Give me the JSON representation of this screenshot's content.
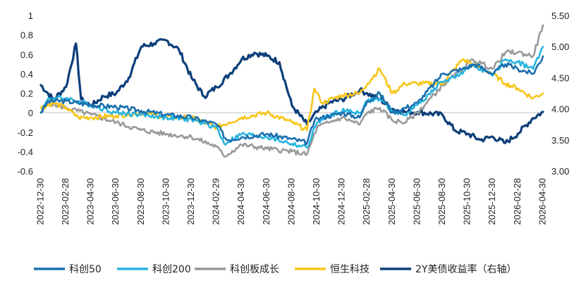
{
  "chart_data": {
    "type": "line",
    "title": "",
    "xlabel": "",
    "ylabel": "",
    "y2label": "",
    "ylim": [
      -0.6,
      1.0
    ],
    "y2lim": [
      3.0,
      5.5
    ],
    "yticks": [
      "1",
      "0.8",
      "0.6",
      "0.4",
      "0.2",
      "0",
      "-0.2",
      "-0.4",
      "-0.6"
    ],
    "y2ticks": [
      "5.50",
      "5.00",
      "4.50",
      "4.00",
      "3.50",
      "3.00"
    ],
    "xticks": [
      "2022-12-30",
      "2023-02-28",
      "2023-04-30",
      "2023-06-30",
      "2023-08-30",
      "2023-10-30",
      "2023-12-30",
      "2024-02-29",
      "2024-04-30",
      "2024-06-30",
      "2024-08-30",
      "2024-10-30",
      "2024-12-30",
      "2025-02-28",
      "2025-04-30",
      "2025-06-30",
      "2025-08-30",
      "2025-10-30",
      "2025-12-30",
      "2026-02-28",
      "2026-04-30"
    ],
    "legend_position": "bottom",
    "grid": false,
    "series": [
      {
        "name": "科创50",
        "color": "#1a6fad",
        "axis": "left",
        "points": [
          [
            0,
            0.0
          ],
          [
            0.3,
            0.12
          ],
          [
            1,
            0.12
          ],
          [
            2,
            0.08
          ],
          [
            3,
            0.06
          ],
          [
            4,
            0.02
          ],
          [
            5,
            -0.02
          ],
          [
            6,
            -0.05
          ],
          [
            7,
            -0.12
          ],
          [
            7.4,
            -0.28
          ],
          [
            8,
            -0.25
          ],
          [
            9,
            -0.22
          ],
          [
            10,
            -0.27
          ],
          [
            10.6,
            -0.31
          ],
          [
            10.9,
            -0.08
          ],
          [
            11.2,
            -0.05
          ],
          [
            12,
            0.0
          ],
          [
            12.7,
            -0.05
          ],
          [
            13,
            0.12
          ],
          [
            13.5,
            0.2
          ],
          [
            14,
            0.0
          ],
          [
            14.5,
            0.05
          ],
          [
            15,
            0.1
          ],
          [
            16,
            0.4
          ],
          [
            16.8,
            0.45
          ],
          [
            17.3,
            0.5
          ],
          [
            18,
            0.4
          ],
          [
            18.5,
            0.5
          ],
          [
            19,
            0.45
          ],
          [
            19.6,
            0.4
          ],
          [
            20,
            0.58
          ]
        ]
      },
      {
        "name": "科创200",
        "color": "#28b4e0",
        "axis": "left",
        "points": [
          [
            0,
            0.0
          ],
          [
            0.3,
            0.15
          ],
          [
            1,
            0.15
          ],
          [
            2,
            0.08
          ],
          [
            3,
            0.0
          ],
          [
            4,
            -0.02
          ],
          [
            5,
            -0.05
          ],
          [
            6,
            -0.07
          ],
          [
            7,
            -0.15
          ],
          [
            7.3,
            -0.32
          ],
          [
            8,
            -0.22
          ],
          [
            9,
            -0.25
          ],
          [
            10,
            -0.32
          ],
          [
            10.6,
            -0.36
          ],
          [
            11,
            -0.1
          ],
          [
            11.5,
            -0.03
          ],
          [
            12,
            0.02
          ],
          [
            12.7,
            0.0
          ],
          [
            13,
            0.12
          ],
          [
            13.5,
            0.14
          ],
          [
            14,
            0.02
          ],
          [
            14.5,
            -0.02
          ],
          [
            15,
            0.08
          ],
          [
            16,
            0.32
          ],
          [
            16.8,
            0.4
          ],
          [
            17.2,
            0.5
          ],
          [
            18,
            0.38
          ],
          [
            18.5,
            0.55
          ],
          [
            19,
            0.52
          ],
          [
            19.6,
            0.45
          ],
          [
            20,
            0.68
          ]
        ]
      },
      {
        "name": "科创板成长",
        "color": "#999999",
        "axis": "left",
        "points": [
          [
            0,
            0.0
          ],
          [
            0.3,
            0.1
          ],
          [
            1,
            0.05
          ],
          [
            2,
            -0.02
          ],
          [
            3,
            -0.1
          ],
          [
            4,
            -0.18
          ],
          [
            5,
            -0.22
          ],
          [
            6,
            -0.25
          ],
          [
            7,
            -0.35
          ],
          [
            7.3,
            -0.45
          ],
          [
            8,
            -0.33
          ],
          [
            9,
            -0.37
          ],
          [
            10,
            -0.4
          ],
          [
            10.6,
            -0.43
          ],
          [
            11,
            -0.15
          ],
          [
            11.5,
            -0.1
          ],
          [
            12,
            -0.05
          ],
          [
            12.7,
            -0.12
          ],
          [
            13,
            0.0
          ],
          [
            13.5,
            0.05
          ],
          [
            14,
            -0.08
          ],
          [
            14.5,
            -0.1
          ],
          [
            15,
            0.0
          ],
          [
            16,
            0.28
          ],
          [
            16.8,
            0.45
          ],
          [
            17.2,
            0.55
          ],
          [
            18,
            0.45
          ],
          [
            18.5,
            0.62
          ],
          [
            19,
            0.62
          ],
          [
            19.6,
            0.58
          ],
          [
            20,
            0.9
          ]
        ]
      },
      {
        "name": "恒生科技",
        "color": "#f7c519",
        "axis": "left",
        "points": [
          [
            0,
            0.05
          ],
          [
            0.5,
            0.1
          ],
          [
            1,
            0.05
          ],
          [
            1.5,
            -0.05
          ],
          [
            2,
            -0.05
          ],
          [
            3,
            -0.03
          ],
          [
            4,
            0.0
          ],
          [
            5,
            -0.05
          ],
          [
            6,
            -0.05
          ],
          [
            7,
            -0.15
          ],
          [
            7.5,
            -0.1
          ],
          [
            8,
            -0.05
          ],
          [
            9,
            0.0
          ],
          [
            10,
            -0.1
          ],
          [
            10.6,
            -0.18
          ],
          [
            10.9,
            0.25
          ],
          [
            11.2,
            0.1
          ],
          [
            12,
            0.18
          ],
          [
            12.7,
            0.2
          ],
          [
            13,
            0.3
          ],
          [
            13.5,
            0.45
          ],
          [
            14,
            0.2
          ],
          [
            14.5,
            0.3
          ],
          [
            15,
            0.3
          ],
          [
            16,
            0.3
          ],
          [
            16.8,
            0.55
          ],
          [
            17.2,
            0.5
          ],
          [
            18,
            0.4
          ],
          [
            18.5,
            0.3
          ],
          [
            19,
            0.25
          ],
          [
            19.6,
            0.15
          ],
          [
            20,
            0.2
          ]
        ]
      },
      {
        "name": "2Y美债收益率（右轴）",
        "color": "#0d3f7a",
        "axis": "right",
        "points": [
          [
            0,
            4.38
          ],
          [
            0.5,
            4.15
          ],
          [
            1,
            4.35
          ],
          [
            1.4,
            5.05
          ],
          [
            1.6,
            4.15
          ],
          [
            2,
            4.05
          ],
          [
            2.5,
            4.2
          ],
          [
            3,
            4.25
          ],
          [
            3.5,
            4.5
          ],
          [
            4,
            5.0
          ],
          [
            4.5,
            5.05
          ],
          [
            5,
            5.1
          ],
          [
            5.5,
            4.95
          ],
          [
            6,
            4.5
          ],
          [
            6.5,
            4.2
          ],
          [
            7,
            4.35
          ],
          [
            7.5,
            4.55
          ],
          [
            8,
            4.8
          ],
          [
            8.5,
            4.9
          ],
          [
            9,
            4.85
          ],
          [
            9.5,
            4.75
          ],
          [
            10,
            4.05
          ],
          [
            10.6,
            3.75
          ],
          [
            11,
            3.95
          ],
          [
            11.5,
            4.1
          ],
          [
            12,
            4.15
          ],
          [
            12.7,
            4.3
          ],
          [
            13,
            4.25
          ],
          [
            13.5,
            4.15
          ],
          [
            14,
            4.0
          ],
          [
            14.5,
            3.95
          ],
          [
            15,
            3.95
          ],
          [
            16,
            3.9
          ],
          [
            16.5,
            3.65
          ],
          [
            17,
            3.6
          ],
          [
            17.5,
            3.5
          ],
          [
            18,
            3.55
          ],
          [
            18.5,
            3.45
          ],
          [
            19,
            3.6
          ],
          [
            19.6,
            3.85
          ],
          [
            20,
            3.95
          ]
        ]
      }
    ]
  }
}
